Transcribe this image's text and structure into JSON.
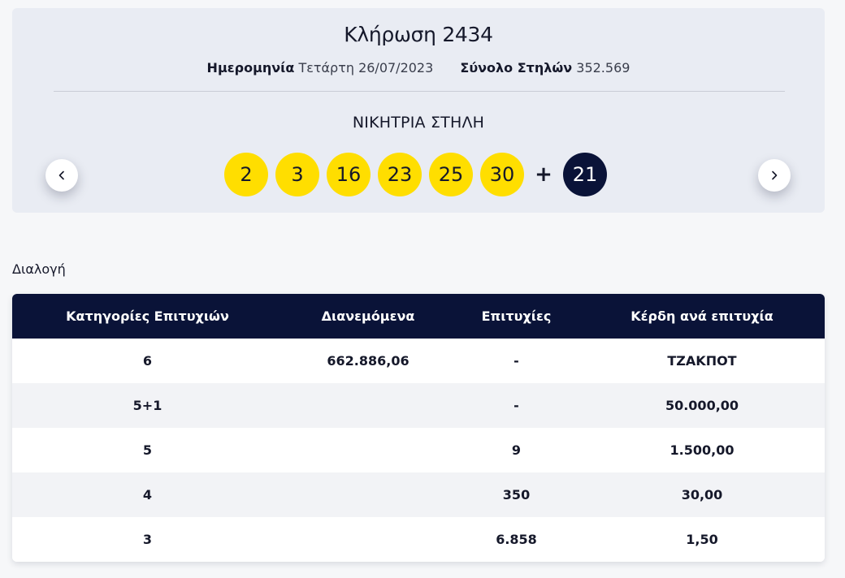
{
  "draw": {
    "title": "Κλήρωση 2434",
    "date_label": "Ημερομηνία",
    "date_value": "Τετάρτη 26/07/2023",
    "columns_label": "Σύνολο Στηλών",
    "columns_value": "352.569",
    "winning_label": "ΝΙΚΗΤΡΙΑ ΣΤΗΛΗ",
    "numbers": [
      "2",
      "3",
      "16",
      "23",
      "25",
      "30"
    ],
    "plus": "+",
    "bonus": "21",
    "prev_icon": "chevron-left-icon",
    "next_icon": "chevron-right-icon"
  },
  "colors": {
    "ball": "#ffde00",
    "bonus_ball": "#0a1338",
    "header": "#0a1338",
    "card": "#e9ecf3"
  },
  "results": {
    "section_label": "Διαλογή",
    "headers": [
      "Κατηγορίες Επιτυχιών",
      "Διανεμόμενα",
      "Επιτυχίες",
      "Κέρδη ανά επιτυχία"
    ],
    "rows": [
      [
        "6",
        "662.886,06",
        "-",
        "ΤΖΑΚΠΟΤ"
      ],
      [
        "5+1",
        "",
        "-",
        "50.000,00"
      ],
      [
        "5",
        "",
        "9",
        "1.500,00"
      ],
      [
        "4",
        "",
        "350",
        "30,00"
      ],
      [
        "3",
        "",
        "6.858",
        "1,50"
      ]
    ]
  }
}
